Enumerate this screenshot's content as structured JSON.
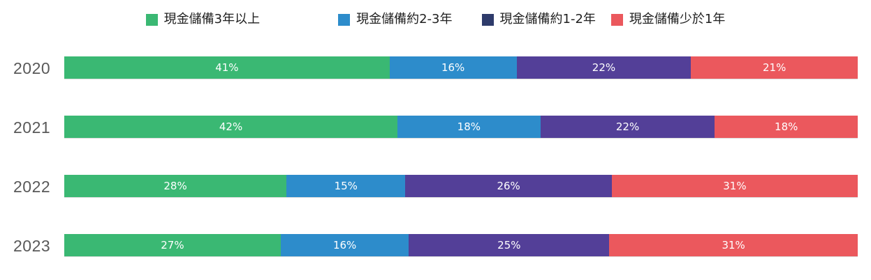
{
  "chart_data": {
    "type": "bar",
    "orientation": "horizontal-stacked",
    "legend_position": "top",
    "value_suffix": "%",
    "categories": [
      "2020",
      "2021",
      "2022",
      "2023"
    ],
    "series": [
      {
        "name": "現金儲備3年以上",
        "color": "#3ab873",
        "legend_color": "#3ab873",
        "values": [
          41,
          42,
          28,
          27
        ]
      },
      {
        "name": "現金儲備約2-3年",
        "color": "#2d8ccb",
        "legend_color": "#2d8ccb",
        "values": [
          16,
          18,
          15,
          16
        ]
      },
      {
        "name": "現金儲備約1-2年",
        "color": "#533f98",
        "legend_color": "#2e3b6b",
        "values": [
          22,
          22,
          26,
          25
        ]
      },
      {
        "name": "現金儲備少於1年",
        "color": "#eb585d",
        "legend_color": "#eb585d",
        "values": [
          21,
          18,
          31,
          31
        ]
      }
    ],
    "colors": {
      "baseline": "#dcdcdc",
      "year_label": "#595959",
      "legend_text": "#1f1f1f",
      "value_label": "#ffffff"
    }
  }
}
